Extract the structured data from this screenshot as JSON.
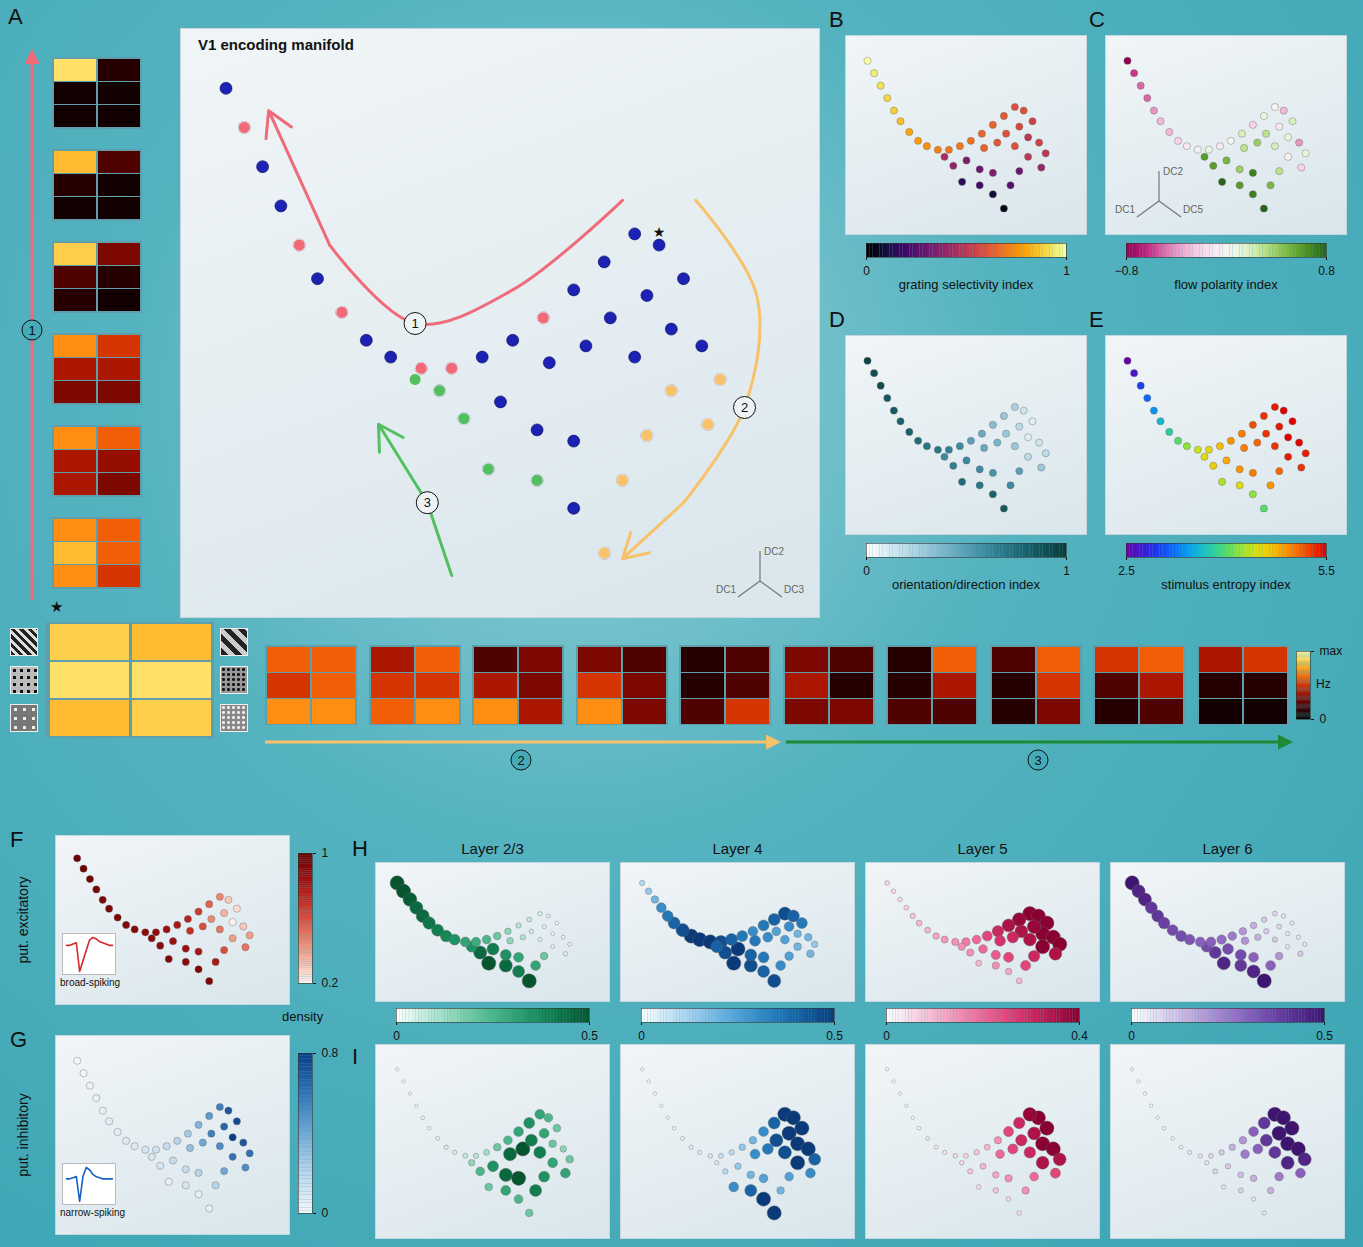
{
  "chart_data": [
    {
      "type": "scatter",
      "panel": "A",
      "title": "V1 encoding manifold",
      "axis_labels": [
        "DC1",
        "DC2",
        "DC3"
      ],
      "tick_labels": false,
      "color": "#1c22b4",
      "star": {
        "label": "★",
        "x": 76,
        "y": 64
      },
      "trajectories": [
        {
          "name": "1",
          "color": "#f06a78",
          "x": [
            8,
            17,
            24,
            37,
            42,
            57
          ],
          "y": [
            85,
            64,
            52,
            42,
            42,
            51
          ],
          "path_x": [
            70,
            52,
            36,
            22,
            12
          ],
          "path_y": [
            72,
            56,
            50,
            64,
            88
          ]
        },
        {
          "name": "2",
          "color": "#f8c26a",
          "x": [
            86,
            84,
            78,
            74,
            70,
            67
          ],
          "y": [
            40,
            32,
            38,
            30,
            22,
            9
          ],
          "path_x": [
            82,
            92,
            90,
            80,
            70
          ],
          "path_y": [
            72,
            55,
            35,
            18,
            8
          ]
        },
        {
          "name": "3",
          "color": "#52c060",
          "x": [
            36,
            40,
            44,
            48,
            56
          ],
          "y": [
            40,
            38,
            33,
            24,
            22
          ],
          "path_x": [
            42,
            38,
            30
          ],
          "path_y": [
            5,
            18,
            32
          ]
        }
      ]
    },
    {
      "type": "heatmap",
      "colorbar": {
        "lim": [
          0,
          1
        ],
        "ticks": [
          {
            "value": 1,
            "label": "max"
          },
          0
        ],
        "label": "Hz"
      },
      "groups": [
        {
          "name": "1",
          "color": "#f06a78",
          "maps": [
            [
              [
                0.9,
                0.1
              ],
              [
                0.05,
                0.05
              ],
              [
                0.05,
                0.05
              ]
            ],
            [
              [
                0.8,
                0.2
              ],
              [
                0.1,
                0.05
              ],
              [
                0.05,
                0.05
              ]
            ],
            [
              [
                0.85,
                0.3
              ],
              [
                0.2,
                0.1
              ],
              [
                0.1,
                0.05
              ]
            ],
            [
              [
                0.7,
                0.5
              ],
              [
                0.4,
                0.4
              ],
              [
                0.3,
                0.3
              ]
            ],
            [
              [
                0.7,
                0.6
              ],
              [
                0.4,
                0.35
              ],
              [
                0.4,
                0.3
              ]
            ],
            [
              [
                0.7,
                0.6
              ],
              [
                0.8,
                0.6
              ],
              [
                0.7,
                0.5
              ]
            ]
          ]
        },
        {
          "name": "★",
          "maps": [
            [
              [
                0.85,
                0.8
              ],
              [
                0.9,
                0.9
              ],
              [
                0.8,
                0.85
              ]
            ]
          ]
        },
        {
          "name": "2",
          "color": "#f8c26a",
          "maps": [
            [
              [
                0.6,
                0.6
              ],
              [
                0.5,
                0.6
              ],
              [
                0.7,
                0.7
              ]
            ],
            [
              [
                0.4,
                0.6
              ],
              [
                0.5,
                0.5
              ],
              [
                0.6,
                0.7
              ]
            ],
            [
              [
                0.2,
                0.3
              ],
              [
                0.4,
                0.3
              ],
              [
                0.7,
                0.4
              ]
            ],
            [
              [
                0.3,
                0.2
              ],
              [
                0.5,
                0.3
              ],
              [
                0.7,
                0.3
              ]
            ],
            [
              [
                0.1,
                0.2
              ],
              [
                0.1,
                0.2
              ],
              [
                0.2,
                0.5
              ]
            ]
          ]
        },
        {
          "name": "3",
          "color": "#1f8a35",
          "maps": [
            [
              [
                0.3,
                0.2
              ],
              [
                0.4,
                0.1
              ],
              [
                0.3,
                0.3
              ]
            ],
            [
              [
                0.1,
                0.6
              ],
              [
                0.1,
                0.4
              ],
              [
                0.2,
                0.2
              ]
            ],
            [
              [
                0.2,
                0.6
              ],
              [
                0.1,
                0.5
              ],
              [
                0.1,
                0.3
              ]
            ],
            [
              [
                0.5,
                0.6
              ],
              [
                0.2,
                0.4
              ],
              [
                0.1,
                0.2
              ]
            ],
            [
              [
                0.4,
                0.5
              ],
              [
                0.1,
                0.1
              ],
              [
                0.05,
                0.05
              ]
            ]
          ]
        }
      ]
    },
    {
      "type": "scatter",
      "panel": "B",
      "tick_labels": false,
      "values": [
        1.0,
        0.95,
        0.92,
        0.9,
        0.88,
        0.85,
        0.8,
        0.78,
        0.75,
        0.72,
        0.7,
        0.7,
        0.68,
        0.65,
        0.65,
        0.62,
        0.6,
        0.6,
        0.55,
        0.58,
        0.6,
        0.5,
        0.55,
        0.6,
        0.62,
        0.65,
        0.5,
        0.35,
        0.4,
        0.3,
        0.35,
        0.15,
        0.2,
        0.1,
        0.25,
        0.3,
        0.45,
        0.4,
        0.05,
        0.5
      ],
      "colorbar": {
        "lim": [
          0,
          1
        ],
        "ticks": [
          0,
          1
        ],
        "label": "grating selectivity index"
      }
    },
    {
      "type": "scatter",
      "panel": "C",
      "tick_labels": false,
      "axis_labels": [
        "DC1",
        "DC2",
        "DC5"
      ],
      "values": [
        -0.8,
        -0.6,
        -0.5,
        -0.5,
        -0.4,
        -0.3,
        -0.3,
        -0.2,
        -0.1,
        0.0,
        0.1,
        -0.1,
        0.0,
        0.2,
        -0.2,
        0.1,
        0.0,
        -0.3,
        0.2,
        -0.1,
        0.3,
        0.1,
        -0.4,
        0.2,
        0.4,
        0.3,
        0.0,
        0.5,
        0.6,
        0.4,
        0.7,
        0.8,
        0.6,
        0.7,
        0.5,
        0.3,
        0.6,
        -0.2,
        0.8,
        0.1
      ],
      "colorbar": {
        "lim": [
          -0.8,
          0.8
        ],
        "ticks": [
          -0.8,
          0.8
        ],
        "label": "flow polarity index"
      }
    },
    {
      "type": "scatter",
      "panel": "D",
      "tick_labels": false,
      "values": [
        0.95,
        0.9,
        0.9,
        0.85,
        0.85,
        0.8,
        0.8,
        0.75,
        0.7,
        0.7,
        0.65,
        0.6,
        0.5,
        0.45,
        0.35,
        0.3,
        0.25,
        0.15,
        0.1,
        0.2,
        0.3,
        0.1,
        0.15,
        0.3,
        0.4,
        0.45,
        0.2,
        0.6,
        0.65,
        0.6,
        0.55,
        0.75,
        0.7,
        0.8,
        0.6,
        0.5,
        0.6,
        0.3,
        0.85,
        0.2
      ],
      "colorbar": {
        "lim": [
          0,
          1
        ],
        "ticks": [
          0,
          1
        ],
        "label": "orientation/direction index"
      }
    },
    {
      "type": "scatter",
      "panel": "E",
      "tick_labels": false,
      "values": [
        2.5,
        2.7,
        3.0,
        3.2,
        3.4,
        3.6,
        3.8,
        4.0,
        4.2,
        4.4,
        4.5,
        4.7,
        4.9,
        5.0,
        5.2,
        5.3,
        5.4,
        5.5,
        5.5,
        5.4,
        5.3,
        5.5,
        5.5,
        5.3,
        5.1,
        5.0,
        5.4,
        4.8,
        4.6,
        4.9,
        5.0,
        4.3,
        4.5,
        4.2,
        4.9,
        5.1,
        4.5,
        5.3,
        4.0,
        5.4
      ],
      "colorbar": {
        "lim": [
          2.5,
          5.5
        ],
        "ticks": [
          2.5,
          5.5
        ],
        "label": "stimulus entropy index"
      }
    },
    {
      "type": "scatter",
      "panel": "F",
      "row_label": "put. excitatory",
      "tick_labels": false,
      "values": [
        1.0,
        1.0,
        0.98,
        0.97,
        0.96,
        0.95,
        0.95,
        0.93,
        0.92,
        0.9,
        0.88,
        0.85,
        0.8,
        0.75,
        0.65,
        0.55,
        0.45,
        0.3,
        0.25,
        0.35,
        0.45,
        0.2,
        0.3,
        0.5,
        0.6,
        0.7,
        0.4,
        0.85,
        0.9,
        0.85,
        0.8,
        0.95,
        0.9,
        0.95,
        0.8,
        0.6,
        0.9,
        0.5,
        0.95,
        0.4
      ],
      "colorbar": {
        "lim": [
          0.2,
          1
        ],
        "ticks": [
          1,
          0.2
        ],
        "label": "density"
      },
      "inset": {
        "label": "broad-spiking",
        "color": "#d02a2a",
        "values": [
          0,
          0,
          0.05,
          0.1,
          -1,
          -0.6,
          -0.2,
          0.2,
          0.3,
          0.25,
          0.15,
          0.1,
          0.05,
          0,
          0
        ]
      }
    },
    {
      "type": "scatter",
      "panel": "G",
      "row_label": "put. inhibitory",
      "tick_labels": false,
      "values": [
        0,
        0,
        0.02,
        0.03,
        0.04,
        0.05,
        0.05,
        0.07,
        0.08,
        0.1,
        0.12,
        0.15,
        0.2,
        0.25,
        0.35,
        0.45,
        0.55,
        0.7,
        0.75,
        0.65,
        0.55,
        0.8,
        0.7,
        0.5,
        0.4,
        0.3,
        0.6,
        0.15,
        0.1,
        0.15,
        0.2,
        0.05,
        0.1,
        0.05,
        0.2,
        0.4,
        0.1,
        0.5,
        0.05,
        0.6
      ],
      "colorbar": {
        "lim": [
          0,
          0.8
        ],
        "ticks": [
          0.8,
          0
        ]
      },
      "inset": {
        "label": "narrow-spiking",
        "color": "#1462c4",
        "values": [
          0,
          0,
          0.05,
          0.1,
          -1,
          0.1,
          0.5,
          0.4,
          0.2,
          0.1,
          0.05,
          0,
          0,
          0,
          0
        ]
      }
    },
    {
      "type": "scatter",
      "title": "Layer 2/3",
      "panels": [
        "H",
        "I"
      ],
      "tick_labels": false,
      "excitatory": [
        0.5,
        0.5,
        0.48,
        0.45,
        0.45,
        0.42,
        0.4,
        0.38,
        0.35,
        0.3,
        0.28,
        0.25,
        0.2,
        0.15,
        0.1,
        0.08,
        0.05,
        0.03,
        0.02,
        0.04,
        0.06,
        0.02,
        0.03,
        0.05,
        0.1,
        0.15,
        0.03,
        0.4,
        0.45,
        0.35,
        0.3,
        0.5,
        0.45,
        0.4,
        0.3,
        0.2,
        0.35,
        0.05,
        0.5,
        0.03
      ],
      "inhibitory": [
        0,
        0,
        0,
        0,
        0.02,
        0.02,
        0.03,
        0.05,
        0.05,
        0.08,
        0.1,
        0.12,
        0.2,
        0.25,
        0.3,
        0.35,
        0.3,
        0.25,
        0.2,
        0.3,
        0.4,
        0.2,
        0.15,
        0.4,
        0.5,
        0.45,
        0.3,
        0.35,
        0.25,
        0.45,
        0.5,
        0.2,
        0.3,
        0.25,
        0.4,
        0.35,
        0.15,
        0.3,
        0.2,
        0.2
      ],
      "colorbar": {
        "lim": [
          0,
          0.5
        ],
        "ticks": [
          0,
          0.5
        ]
      }
    },
    {
      "type": "scatter",
      "title": "Layer 4",
      "tick_labels": false,
      "excitatory": [
        0.1,
        0.15,
        0.2,
        0.3,
        0.35,
        0.4,
        0.45,
        0.5,
        0.5,
        0.5,
        0.45,
        0.4,
        0.35,
        0.3,
        0.35,
        0.4,
        0.45,
        0.4,
        0.35,
        0.3,
        0.25,
        0.2,
        0.2,
        0.25,
        0.3,
        0.35,
        0.2,
        0.5,
        0.45,
        0.4,
        0.35,
        0.5,
        0.45,
        0.4,
        0.3,
        0.25,
        0.4,
        0.2,
        0.45,
        0.15
      ],
      "inhibitory": [
        0,
        0,
        0,
        0,
        0,
        0.02,
        0.03,
        0.04,
        0.05,
        0.06,
        0.08,
        0.1,
        0.15,
        0.2,
        0.3,
        0.4,
        0.5,
        0.5,
        0.5,
        0.5,
        0.45,
        0.5,
        0.5,
        0.45,
        0.35,
        0.3,
        0.5,
        0.15,
        0.1,
        0.2,
        0.25,
        0.3,
        0.4,
        0.5,
        0.2,
        0.25,
        0.05,
        0.3,
        0.5,
        0.4
      ],
      "colorbar": {
        "lim": [
          0,
          0.5
        ],
        "ticks": [
          0,
          0.5
        ]
      }
    },
    {
      "type": "scatter",
      "title": "Layer 5",
      "tick_labels": false,
      "excitatory": [
        0.05,
        0.05,
        0.05,
        0.06,
        0.08,
        0.1,
        0.1,
        0.12,
        0.14,
        0.15,
        0.18,
        0.2,
        0.25,
        0.3,
        0.35,
        0.38,
        0.4,
        0.4,
        0.4,
        0.38,
        0.35,
        0.4,
        0.4,
        0.35,
        0.3,
        0.28,
        0.4,
        0.2,
        0.15,
        0.22,
        0.25,
        0.1,
        0.15,
        0.12,
        0.25,
        0.3,
        0.15,
        0.35,
        0.1,
        0.4
      ],
      "inhibitory": [
        0,
        0,
        0,
        0,
        0,
        0.01,
        0.02,
        0.03,
        0.04,
        0.05,
        0.06,
        0.08,
        0.1,
        0.15,
        0.25,
        0.3,
        0.38,
        0.4,
        0.4,
        0.35,
        0.3,
        0.4,
        0.4,
        0.3,
        0.25,
        0.2,
        0.35,
        0.1,
        0.08,
        0.12,
        0.15,
        0.05,
        0.08,
        0.05,
        0.15,
        0.2,
        0.05,
        0.25,
        0.05,
        0.35
      ],
      "colorbar": {
        "lim": [
          0,
          0.4
        ],
        "ticks": [
          0,
          0.4
        ]
      }
    },
    {
      "type": "scatter",
      "title": "Layer 6",
      "tick_labels": false,
      "excitatory": [
        0.5,
        0.45,
        0.45,
        0.4,
        0.4,
        0.38,
        0.35,
        0.35,
        0.33,
        0.3,
        0.3,
        0.28,
        0.25,
        0.2,
        0.15,
        0.1,
        0.08,
        0.05,
        0.05,
        0.08,
        0.1,
        0.05,
        0.05,
        0.1,
        0.15,
        0.2,
        0.05,
        0.35,
        0.4,
        0.35,
        0.3,
        0.45,
        0.4,
        0.45,
        0.3,
        0.2,
        0.35,
        0.1,
        0.5,
        0.05
      ],
      "inhibitory": [
        0,
        0,
        0,
        0,
        0,
        0.02,
        0.02,
        0.03,
        0.04,
        0.05,
        0.07,
        0.1,
        0.15,
        0.2,
        0.3,
        0.4,
        0.5,
        0.5,
        0.5,
        0.5,
        0.4,
        0.5,
        0.5,
        0.4,
        0.3,
        0.25,
        0.45,
        0.1,
        0.08,
        0.12,
        0.15,
        0.05,
        0.08,
        0.05,
        0.15,
        0.25,
        0.05,
        0.3,
        0.05,
        0.45
      ],
      "colorbar": {
        "lim": [
          0,
          0.5
        ],
        "ticks": [
          0,
          0.5
        ]
      }
    }
  ],
  "manifold": {
    "xlim": [
      0,
      100
    ],
    "ylim": [
      0,
      100
    ],
    "x": [
      5,
      8,
      11,
      14,
      17,
      20,
      24,
      28,
      32,
      37,
      42,
      47,
      52,
      57,
      62,
      67,
      72,
      76,
      80,
      74,
      68,
      78,
      83,
      72,
      64,
      58,
      78,
      50,
      44,
      56,
      62,
      48,
      56,
      62,
      70,
      74,
      40,
      84,
      67,
      86
    ],
    "y": [
      92,
      85,
      78,
      71,
      64,
      58,
      52,
      47,
      44,
      42,
      42,
      44,
      47,
      51,
      56,
      61,
      66,
      64,
      58,
      55,
      51,
      49,
      46,
      44,
      46,
      43,
      38,
      36,
      33,
      31,
      29,
      24,
      22,
      17,
      22,
      30,
      38,
      32,
      9,
      40
    ]
  }
}
